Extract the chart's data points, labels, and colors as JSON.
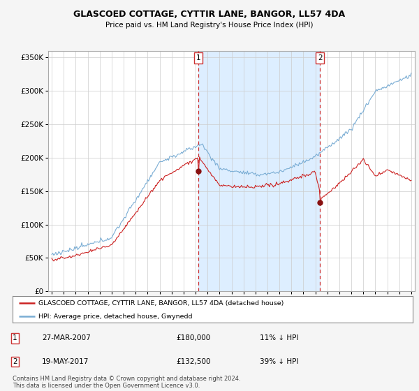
{
  "title": "GLASCOED COTTAGE, CYTTIR LANE, BANGOR, LL57 4DA",
  "subtitle": "Price paid vs. HM Land Registry's House Price Index (HPI)",
  "legend_line1": "GLASCOED COTTAGE, CYTTIR LANE, BANGOR, LL57 4DA (detached house)",
  "legend_line2": "HPI: Average price, detached house, Gwynedd",
  "sale1_date": "27-MAR-2007",
  "sale1_price": "£180,000",
  "sale1_hpi": "11% ↓ HPI",
  "sale1_year": 2007.23,
  "sale1_value": 180000,
  "sale2_date": "19-MAY-2017",
  "sale2_price": "£132,500",
  "sale2_hpi": "39% ↓ HPI",
  "sale2_year": 2017.38,
  "sale2_value": 132500,
  "hpi_color": "#7aadd4",
  "price_color": "#cc2222",
  "shade_color": "#ddeeff",
  "background_color": "#f5f5f5",
  "plot_bg_color": "#ffffff",
  "footer": "Contains HM Land Registry data © Crown copyright and database right 2024.\nThis data is licensed under the Open Government Licence v3.0.",
  "ylim": [
    0,
    360000
  ],
  "xlim_start": 1994.7,
  "xlim_end": 2025.3
}
